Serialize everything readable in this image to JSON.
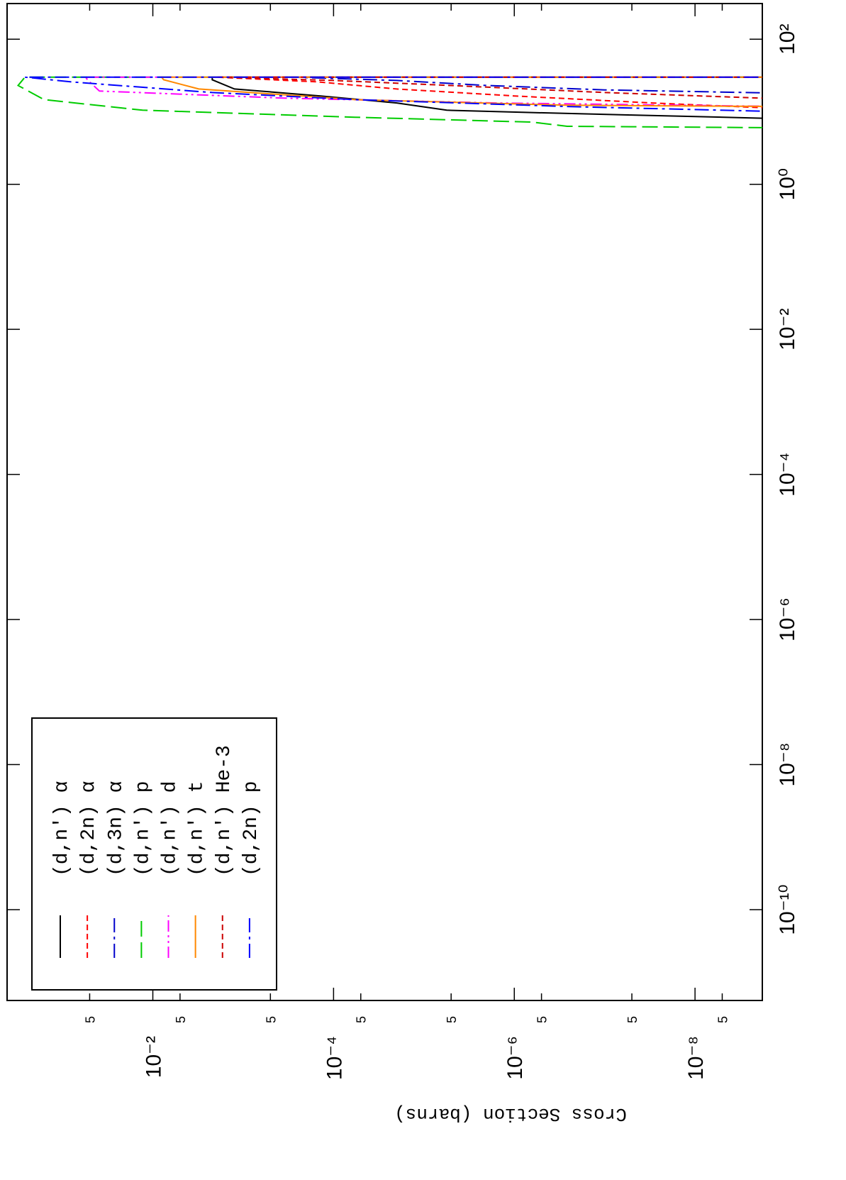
{
  "chart_data": {
    "type": "line",
    "y_label": "Cross Section (barns)",
    "log_x": true,
    "log_y": true,
    "xlim": [
      5.6e-12,
      310
    ],
    "ylim": [
      1.8e-09,
      0.41
    ],
    "xticks": [
      {
        "value": 1e-10,
        "label": "10⁻¹⁰"
      },
      {
        "value": 1e-08,
        "label": "10⁻⁸"
      },
      {
        "value": 1e-06,
        "label": "10⁻⁶"
      },
      {
        "value": 0.0001,
        "label": "10⁻⁴"
      },
      {
        "value": 0.01,
        "label": "10⁻²"
      },
      {
        "value": 1,
        "label": "10⁰"
      },
      {
        "value": 100,
        "label": "10²"
      }
    ],
    "yticks": [
      {
        "value": 0.05,
        "label": "5"
      },
      {
        "value": 0.01,
        "label": "10⁻²"
      },
      {
        "value": 0.005,
        "label": "5"
      },
      {
        "value": 0.0005,
        "label": "5"
      },
      {
        "value": 0.0001,
        "label": "10⁻⁴"
      },
      {
        "value": 5e-05,
        "label": "5"
      },
      {
        "value": 5e-06,
        "label": "5"
      },
      {
        "value": 1e-06,
        "label": "10⁻⁶"
      },
      {
        "value": 5e-07,
        "label": "5"
      },
      {
        "value": 5e-08,
        "label": "5"
      },
      {
        "value": 1e-08,
        "label": "10⁻⁸"
      },
      {
        "value": 5e-09,
        "label": "5"
      }
    ],
    "legend": "upper left",
    "series": [
      {
        "name": "(d,n') α",
        "color": "#000000",
        "dash": "solid",
        "x": [
          8,
          9,
          9.8,
          10.5,
          13.2,
          16.5,
          20.6,
          27.6,
          30,
          30
        ],
        "values": [
          1e-09,
          5e-08,
          7.5e-07,
          5.6e-06,
          2e-05,
          0.00014,
          0.00125,
          0.0022,
          0.0022,
          1e-09
        ]
      },
      {
        "name": "(d,2n) α",
        "color": "#ff0000",
        "dash": "dashed",
        "x": [
          11,
          13.2,
          16.5,
          20.6,
          25.8,
          30,
          30
        ],
        "values": [
          1e-09,
          3e-08,
          1e-06,
          2e-05,
          0.00015,
          0.002,
          1e-09
        ]
      },
      {
        "name": "(d,3n) α",
        "color": "#0000cc",
        "dash": "dashdot",
        "x": [
          18,
          20,
          23,
          27,
          30,
          30
        ],
        "values": [
          1e-09,
          1e-07,
          2e-06,
          2e-05,
          0.0003,
          1e-09
        ]
      },
      {
        "name": "(d,n') p",
        "color": "#00cc00",
        "dash": "longdash",
        "x": [
          6,
          6.3,
          7.2,
          8.4,
          10.5,
          14.7,
          23,
          30,
          30
        ],
        "values": [
          1e-09,
          2.6e-07,
          6.3e-07,
          5.8e-05,
          0.013,
          0.16,
          0.31,
          0.26,
          1e-09
        ]
      },
      {
        "name": "(d,n') d",
        "color": "#ff00ff",
        "dash": "dashdotdot",
        "x": [
          11.8,
          13.2,
          15.4,
          19.3,
          25.8,
          30,
          30
        ],
        "values": [
          1e-09,
          1.6e-06,
          0.00035,
          0.039,
          0.05,
          0.056,
          1e-09
        ]
      },
      {
        "name": "(d,n') t",
        "color": "#ff8800",
        "dash": "solid",
        "x": [
          11.8,
          12.3,
          14.7,
          20.6,
          27.6,
          30,
          30
        ],
        "values": [
          1e-09,
          2.6e-07,
          5.8e-05,
          0.0031,
          0.0076,
          0.008,
          1e-09
        ]
      },
      {
        "name": "(d,n') He-3",
        "color": "#cc0000",
        "dash": "dashed",
        "x": [
          15,
          18.4,
          23,
          27,
          30,
          30
        ],
        "values": [
          1e-09,
          1e-07,
          5e-06,
          0.0001,
          0.002,
          1e-09
        ]
      },
      {
        "name": "(d,2n) p",
        "color": "#0000ff",
        "dash": "dashdot",
        "x": [
          10,
          11.8,
          14.7,
          18.4,
          25.8,
          30,
          30
        ],
        "values": [
          1e-09,
          2.6e-07,
          5.8e-05,
          0.0022,
          0.08,
          0.26,
          1e-09
        ]
      }
    ]
  }
}
